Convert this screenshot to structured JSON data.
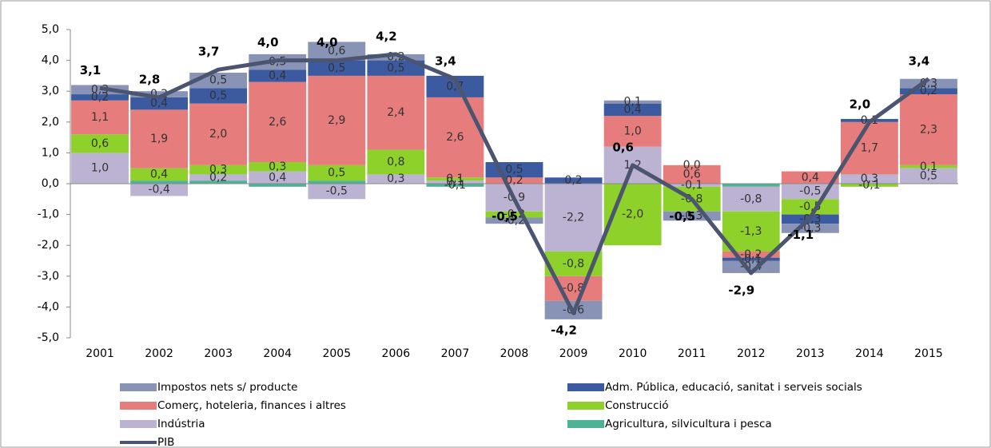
{
  "chart_data": {
    "type": "bar",
    "stacked": true,
    "categories": [
      "2001",
      "2002",
      "2003",
      "2004",
      "2005",
      "2006",
      "2007",
      "2008",
      "2009",
      "2010",
      "2011",
      "2012",
      "2013",
      "2014",
      "2015"
    ],
    "ylim": [
      -5,
      5
    ],
    "yticks": [
      {
        "value": -5,
        "label": "-5,0"
      },
      {
        "value": -4,
        "label": "-4,0"
      },
      {
        "value": -3,
        "label": "-3,0"
      },
      {
        "value": -2,
        "label": "-2,0"
      },
      {
        "value": -1,
        "label": "-1,0"
      },
      {
        "value": 0,
        "label": "0,0"
      },
      {
        "value": 1,
        "label": "1,0"
      },
      {
        "value": 2,
        "label": "2,0"
      },
      {
        "value": 3,
        "label": "3,0"
      },
      {
        "value": 4,
        "label": "4,0"
      },
      {
        "value": 5,
        "label": "5,0"
      }
    ],
    "grid": false,
    "legend": "bottom",
    "series": [
      {
        "name": "Agricultura, silvicultura i pesca",
        "color": "#4db394",
        "values": [
          0.0,
          0.1,
          0.1,
          -0.1,
          0.1,
          0.0,
          -0.1,
          0.0,
          0.0,
          0.0,
          0.0,
          -0.1,
          0.0,
          0.0,
          0.0
        ],
        "value_labels": [
          null,
          null,
          null,
          null,
          null,
          null,
          "-0,1",
          null,
          null,
          null,
          null,
          null,
          null,
          null,
          null
        ]
      },
      {
        "name": "Indústria",
        "color": "#bbb3d1",
        "values": [
          1.0,
          -0.4,
          0.2,
          0.4,
          -0.5,
          0.3,
          0.1,
          -0.9,
          -2.2,
          1.2,
          -0.1,
          -0.8,
          -0.5,
          0.3,
          0.5
        ],
        "value_labels": [
          "1,0",
          "-0,4",
          "0,2",
          "0,4",
          "-0,5",
          "0,3",
          "0,1",
          "-0,9",
          "-2,2",
          "1,2",
          "-0,1",
          "-0,8",
          "-0,5",
          "0,3",
          "0,5"
        ]
      },
      {
        "name": "Construcció",
        "color": "#8ed12b",
        "values": [
          0.6,
          0.4,
          0.3,
          0.3,
          0.5,
          0.8,
          0.1,
          -0.2,
          -0.8,
          -2.0,
          -0.8,
          -1.3,
          -0.5,
          -0.1,
          0.1
        ],
        "value_labels": [
          "0,6",
          "0,4",
          "0,3",
          "0,3",
          "0,5",
          "0,8",
          "0,1",
          "-0,2",
          "-0,8",
          "-2,0",
          "-0,8",
          "-1,3",
          "-0,5",
          "-0,1",
          "0,1"
        ]
      },
      {
        "name": "Comerç, hoteleria, finances i altres",
        "color": "#e67c7b",
        "values": [
          1.1,
          1.9,
          2.0,
          2.6,
          2.9,
          2.4,
          2.6,
          0.2,
          -0.8,
          1.0,
          0.6,
          -0.2,
          0.4,
          1.7,
          2.3
        ],
        "value_labels": [
          "1,1",
          "1,9",
          "2,0",
          "2,6",
          "2,9",
          "2,4",
          "2,6",
          "0,2",
          "-0,8",
          "1,0",
          "0,6",
          "-0,2",
          "0,4",
          "1,7",
          "2,3"
        ]
      },
      {
        "name": "Adm. Pública, educació, sanitat i serveis socials",
        "color": "#3c5aa0",
        "values": [
          0.2,
          0.4,
          0.5,
          0.4,
          0.5,
          0.5,
          0.7,
          0.5,
          0.2,
          0.4,
          0.0,
          -0.1,
          -0.3,
          0.1,
          0.2
        ],
        "value_labels": [
          "0,2",
          "0,4",
          "0,5",
          "0,4",
          "0,5",
          "0,5",
          "0,7",
          "0,5",
          "0,2",
          "0,4",
          "0,0",
          "-0,1",
          "-0,3",
          "0,1",
          "0,2"
        ]
      },
      {
        "name": "Impostos nets s/ producte",
        "color": "#8893b5",
        "values": [
          0.3,
          0.2,
          0.5,
          0.5,
          0.6,
          0.2,
          0.0,
          -0.2,
          -0.6,
          0.1,
          -0.3,
          -0.4,
          -0.3,
          0.0,
          0.3
        ],
        "value_labels": [
          "0,3",
          "0,2",
          "0,5",
          "0,5",
          "0,6",
          "0,2",
          null,
          "-0,2",
          "-0,6",
          "0,1",
          "-0,3",
          "-0,4",
          "-0,3",
          null,
          "0,3"
        ]
      },
      {
        "name": "PIB",
        "color": "#4b5570",
        "type": "line",
        "values": [
          3.1,
          2.8,
          3.7,
          4.0,
          4.0,
          4.2,
          3.4,
          -0.5,
          -4.2,
          0.6,
          -0.5,
          -2.9,
          -1.1,
          2.0,
          3.4
        ],
        "value_labels": [
          "3,1",
          "2,8",
          "3,7",
          "4,0",
          "4,0",
          "4,2",
          "3,4",
          "-0,5",
          "-4,2",
          "0,6",
          "-0,5",
          "-2,9",
          "-1,1",
          "2,0",
          "3,4"
        ]
      }
    ]
  }
}
